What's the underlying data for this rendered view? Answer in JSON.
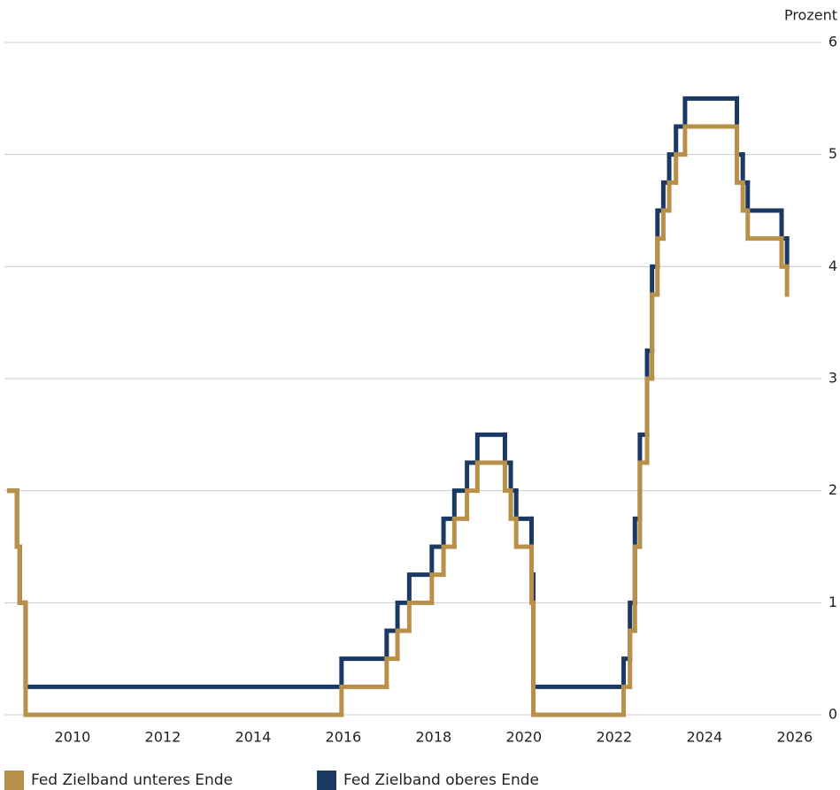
{
  "chart_data": {
    "type": "line",
    "step": "post",
    "y_unit_label": "Prozent",
    "x": [
      2008.6,
      2008.77,
      2008.83,
      2008.96,
      2015.96,
      2016.96,
      2017.2,
      2017.46,
      2017.96,
      2018.22,
      2018.46,
      2018.74,
      2018.97,
      2019.58,
      2019.71,
      2019.83,
      2020.17,
      2020.21,
      2022.21,
      2022.35,
      2022.46,
      2022.57,
      2022.73,
      2022.84,
      2022.96,
      2023.09,
      2023.22,
      2023.37,
      2023.57,
      2024.72,
      2024.85,
      2024.96,
      2025.71,
      2025.83
    ],
    "series": [
      {
        "name": "Fed Zielband unteres Ende",
        "color": "#b8904a",
        "values": [
          2.0,
          1.5,
          1.0,
          0,
          0.25,
          0.5,
          0.75,
          1.0,
          1.25,
          1.5,
          1.75,
          2.0,
          2.25,
          2.0,
          1.75,
          1.5,
          1.0,
          0,
          0.25,
          0.75,
          1.5,
          2.25,
          3.0,
          3.75,
          4.25,
          4.5,
          4.75,
          5.0,
          5.25,
          4.75,
          4.5,
          4.25,
          4.0,
          3.75
        ]
      },
      {
        "name": "Fed Zielband oberes Ende",
        "color": "#1a3a63",
        "values": [
          2.0,
          1.5,
          1.0,
          0.25,
          0.5,
          0.75,
          1.0,
          1.25,
          1.5,
          1.75,
          2.0,
          2.25,
          2.5,
          2.25,
          2.0,
          1.75,
          1.25,
          0.25,
          0.5,
          1.0,
          1.75,
          2.5,
          3.25,
          4.0,
          4.5,
          4.75,
          5.0,
          5.25,
          5.5,
          5.0,
          4.75,
          4.5,
          4.25,
          4.0
        ]
      }
    ],
    "xlim": [
      2008.55,
      2026.2
    ],
    "xticks": [
      2010,
      2012,
      2014,
      2016,
      2018,
      2020,
      2022,
      2024,
      2026
    ],
    "ylim": [
      0,
      6
    ],
    "yticks": [
      0,
      1,
      2,
      3,
      4,
      5,
      6
    ],
    "grid": true
  }
}
